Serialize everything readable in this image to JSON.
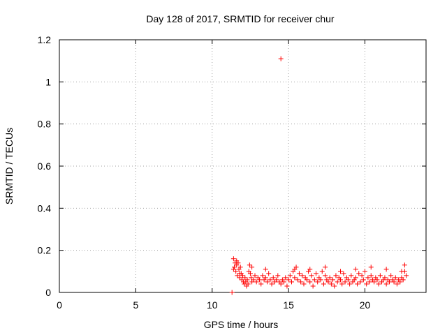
{
  "chart_data": {
    "type": "scatter",
    "title": "Day 128 of 2017, SRMTID for receiver chur",
    "xlabel": "GPS time / hours",
    "ylabel": "SRMTID / TECUs",
    "xlim": [
      0,
      24
    ],
    "ylim": [
      0,
      1.2
    ],
    "xticks": [
      0,
      5,
      10,
      15,
      20
    ],
    "xtick_labels": [
      "0",
      "5",
      "10",
      "15",
      "20"
    ],
    "yticks": [
      0,
      0.2,
      0.4,
      0.6,
      0.8,
      1,
      1.2
    ],
    "ytick_labels": [
      "0",
      "0.2",
      "0.4",
      "0.6",
      "0.8",
      "1",
      "1.2"
    ],
    "grid": true,
    "marker": "+",
    "color": "#ff0000",
    "series": [
      {
        "name": "SRMTID",
        "x": [
          11.3,
          11.4,
          11.45,
          11.5,
          11.55,
          11.6,
          11.65,
          11.7,
          11.75,
          11.8,
          11.85,
          11.9,
          11.95,
          12.0,
          12.05,
          12.1,
          12.15,
          12.2,
          12.25,
          12.3,
          12.35,
          12.4,
          12.45,
          12.5,
          12.55,
          12.6,
          12.7,
          12.8,
          12.9,
          13.0,
          13.1,
          13.2,
          13.3,
          13.4,
          13.5,
          13.6,
          13.7,
          13.8,
          13.9,
          14.0,
          14.1,
          14.2,
          14.3,
          14.4,
          14.5,
          14.6,
          14.7,
          14.8,
          14.9,
          15.0,
          15.1,
          15.2,
          15.3,
          15.4,
          15.5,
          15.6,
          15.7,
          15.8,
          15.9,
          16.0,
          16.1,
          16.2,
          16.3,
          16.4,
          16.5,
          16.6,
          16.7,
          16.8,
          16.9,
          17.0,
          17.1,
          17.2,
          17.3,
          17.4,
          17.5,
          17.6,
          17.7,
          17.8,
          17.9,
          18.0,
          18.1,
          18.2,
          18.3,
          18.4,
          18.5,
          18.6,
          18.7,
          18.8,
          18.9,
          19.0,
          19.1,
          19.2,
          19.3,
          19.4,
          19.5,
          19.6,
          19.7,
          19.8,
          19.9,
          20.0,
          20.1,
          20.2,
          20.3,
          20.4,
          20.5,
          20.6,
          20.7,
          20.8,
          20.9,
          21.0,
          21.1,
          21.2,
          21.3,
          21.4,
          21.5,
          21.6,
          21.7,
          21.8,
          21.9,
          22.0,
          22.1,
          22.2,
          22.3,
          22.4,
          22.5,
          22.6,
          22.7,
          14.5,
          11.4,
          11.6,
          11.8,
          12.6,
          13.5,
          15.4,
          16.4,
          17.4,
          18.4,
          19.4,
          20.4,
          21.4,
          22.4,
          22.6
        ],
        "y": [
          0.0,
          0.16,
          0.12,
          0.14,
          0.1,
          0.13,
          0.08,
          0.14,
          0.11,
          0.07,
          0.12,
          0.09,
          0.06,
          0.08,
          0.05,
          0.04,
          0.07,
          0.05,
          0.03,
          0.06,
          0.04,
          0.1,
          0.13,
          0.09,
          0.07,
          0.05,
          0.06,
          0.08,
          0.05,
          0.07,
          0.06,
          0.04,
          0.08,
          0.06,
          0.07,
          0.05,
          0.09,
          0.06,
          0.04,
          0.07,
          0.05,
          0.06,
          0.08,
          0.05,
          0.04,
          0.06,
          0.05,
          0.07,
          0.03,
          0.06,
          0.08,
          0.05,
          0.1,
          0.07,
          0.12,
          0.06,
          0.09,
          0.05,
          0.08,
          0.04,
          0.07,
          0.06,
          0.1,
          0.05,
          0.08,
          0.03,
          0.06,
          0.09,
          0.05,
          0.07,
          0.06,
          0.1,
          0.04,
          0.08,
          0.06,
          0.05,
          0.07,
          0.04,
          0.06,
          0.03,
          0.08,
          0.05,
          0.07,
          0.06,
          0.04,
          0.09,
          0.05,
          0.07,
          0.06,
          0.04,
          0.08,
          0.05,
          0.06,
          0.07,
          0.04,
          0.09,
          0.05,
          0.08,
          0.06,
          0.1,
          0.04,
          0.07,
          0.05,
          0.08,
          0.06,
          0.05,
          0.07,
          0.06,
          0.04,
          0.08,
          0.05,
          0.06,
          0.07,
          0.04,
          0.06,
          0.05,
          0.08,
          0.06,
          0.05,
          0.07,
          0.04,
          0.06,
          0.05,
          0.07,
          0.06,
          0.1,
          0.08,
          1.11,
          0.11,
          0.15,
          0.09,
          0.12,
          0.11,
          0.11,
          0.11,
          0.12,
          0.1,
          0.11,
          0.12,
          0.11,
          0.1,
          0.13
        ]
      }
    ]
  }
}
